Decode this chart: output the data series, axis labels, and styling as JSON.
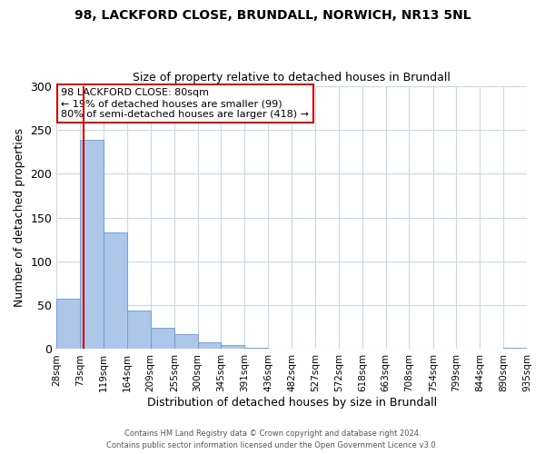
{
  "title_line1": "98, LACKFORD CLOSE, BRUNDALL, NORWICH, NR13 5NL",
  "title_line2": "Size of property relative to detached houses in Brundall",
  "xlabel": "Distribution of detached houses by size in Brundall",
  "ylabel": "Number of detached properties",
  "bar_edges": [
    28,
    73,
    119,
    164,
    209,
    255,
    300,
    345,
    391,
    436,
    482,
    527,
    572,
    618,
    663,
    708,
    754,
    799,
    844,
    890,
    935
  ],
  "bar_heights": [
    57,
    238,
    133,
    44,
    24,
    17,
    8,
    5,
    1,
    0,
    0,
    0,
    0,
    0,
    0,
    0,
    0,
    0,
    0,
    1
  ],
  "bar_color": "#aec6e8",
  "bar_edge_color": "#5a9fd4",
  "vline_x": 80,
  "vline_color": "#cc0000",
  "annotation_text": "98 LACKFORD CLOSE: 80sqm\n← 19% of detached houses are smaller (99)\n80% of semi-detached houses are larger (418) →",
  "annotation_box_color": "#ffffff",
  "annotation_box_edge": "#cc0000",
  "ylim": [
    0,
    300
  ],
  "yticks": [
    0,
    50,
    100,
    150,
    200,
    250,
    300
  ],
  "tick_labels": [
    "28sqm",
    "73sqm",
    "119sqm",
    "164sqm",
    "209sqm",
    "255sqm",
    "300sqm",
    "345sqm",
    "391sqm",
    "436sqm",
    "482sqm",
    "527sqm",
    "572sqm",
    "618sqm",
    "663sqm",
    "708sqm",
    "754sqm",
    "799sqm",
    "844sqm",
    "890sqm",
    "935sqm"
  ],
  "footer_line1": "Contains HM Land Registry data © Crown copyright and database right 2024.",
  "footer_line2": "Contains public sector information licensed under the Open Government Licence v3.0.",
  "background_color": "#ffffff",
  "grid_color": "#c8d8e8"
}
